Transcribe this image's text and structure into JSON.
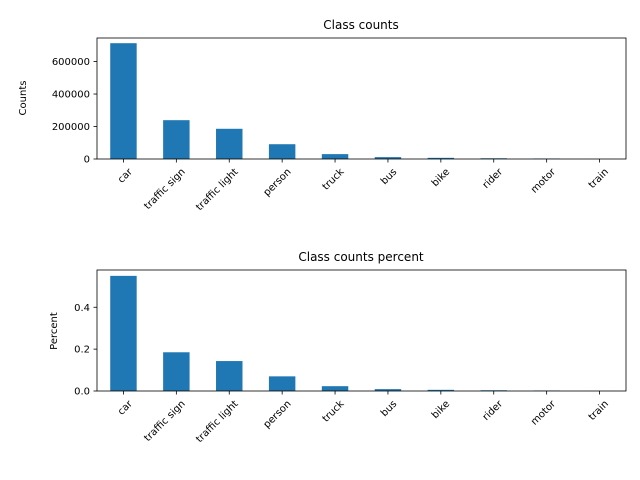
{
  "chart_data": [
    {
      "type": "bar",
      "title": "Class counts",
      "xlabel": "",
      "ylabel": "Counts",
      "categories": [
        "car",
        "traffic sign",
        "traffic light",
        "person",
        "truck",
        "bus",
        "bike",
        "rider",
        "motor",
        "train"
      ],
      "values": [
        713000,
        239000,
        186000,
        91000,
        30000,
        11600,
        7200,
        4500,
        3000,
        140
      ],
      "ylim": [
        0,
        745000
      ],
      "yticks": [
        0,
        200000,
        400000,
        600000
      ],
      "ytick_labels": [
        "0",
        "200000",
        "400000",
        "600000"
      ],
      "bar_color": "#1f77b4",
      "grid": false,
      "legend": false
    },
    {
      "type": "bar",
      "title": "Class counts percent",
      "xlabel": "",
      "ylabel": "Percent",
      "categories": [
        "car",
        "traffic sign",
        "traffic light",
        "person",
        "truck",
        "bus",
        "bike",
        "rider",
        "motor",
        "train"
      ],
      "values": [
        0.55,
        0.185,
        0.143,
        0.07,
        0.023,
        0.009,
        0.0056,
        0.0035,
        0.0023,
        0.0001
      ],
      "ylim": [
        0,
        0.578
      ],
      "yticks": [
        0,
        0.2,
        0.4
      ],
      "ytick_labels": [
        "0.0",
        "0.2",
        "0.4"
      ],
      "bar_color": "#1f77b4",
      "grid": false,
      "legend": false
    }
  ]
}
